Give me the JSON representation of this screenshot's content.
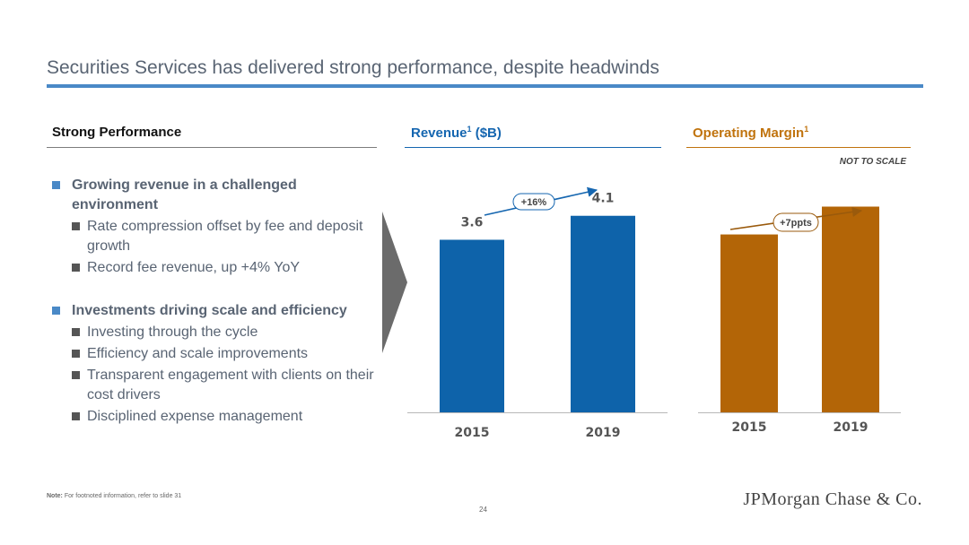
{
  "title": "Securities Services has delivered strong performance, despite headwinds",
  "performance": {
    "heading": "Strong Performance",
    "groups": [
      {
        "text": "Growing revenue in a challenged environment",
        "items": [
          "Rate compression offset by fee and deposit growth",
          "Record fee revenue, up +4% YoY"
        ]
      },
      {
        "text": "Investments driving scale and efficiency",
        "items": [
          "Investing through the cycle",
          "Efficiency and scale improvements",
          "Transparent engagement with clients on their cost drivers",
          "Disciplined expense management"
        ]
      }
    ]
  },
  "revenue_heading": {
    "text": "Revenue",
    "sup": "1",
    "unit": "($B)"
  },
  "margin_heading": {
    "text": "Operating Margin",
    "sup": "1"
  },
  "not_to_scale": "NOT TO SCALE",
  "colors": {
    "revenue": "#0e63aa",
    "margin": "#b36507",
    "accent": "#4a89c7"
  },
  "chart_data": [
    {
      "type": "bar",
      "categories": [
        "2015",
        "2019"
      ],
      "values": [
        3.6,
        4.1
      ],
      "data_labels": [
        "3.6",
        "4.1"
      ],
      "annotation": "+16%",
      "ylim": [
        0,
        4.6
      ]
    },
    {
      "type": "bar",
      "categories": [
        "2015",
        "2019"
      ],
      "values": [
        0.735,
        0.85
      ],
      "data_labels": [],
      "annotation": "+7ppts",
      "ylim": [
        0,
        1.0
      ]
    }
  ],
  "footer": {
    "note_label": "Note:",
    "note_text": "For footnoted information, refer to slide 31",
    "page": "24",
    "logo": "JPMorgan Chase & Co."
  }
}
